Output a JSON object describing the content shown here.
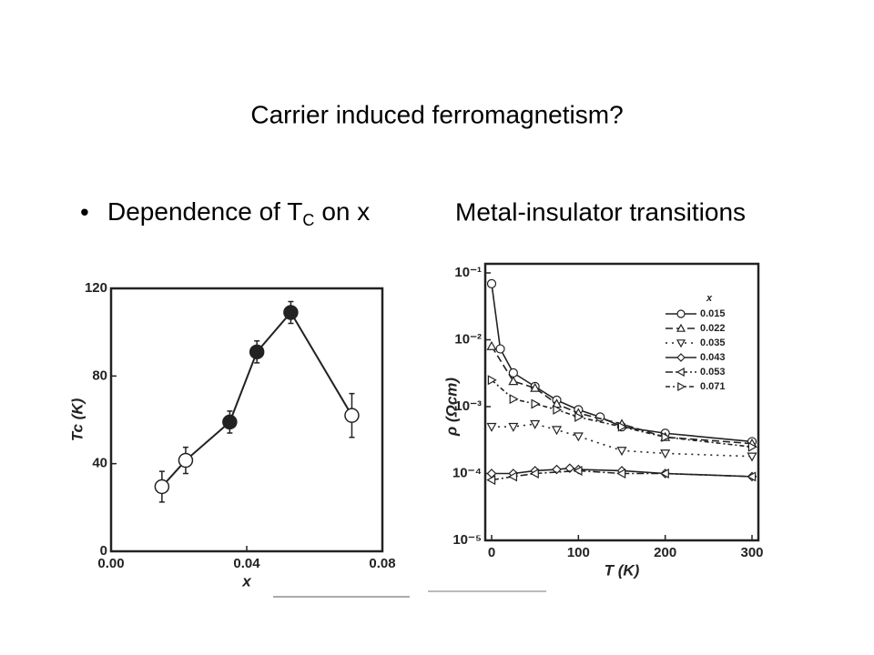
{
  "slide": {
    "title": "Carrier induced ferromagnetism?",
    "bullet": {
      "marker": "•",
      "text": "Dependence of T",
      "subscript": "C",
      "suffix": "on x"
    },
    "heading": "Metal-insulator transitions"
  },
  "chart_data": [
    {
      "type": "scatter",
      "x_label": "x",
      "y_label": "Tc (K)",
      "xlim": [
        0,
        0.08
      ],
      "xticks": [
        {
          "value": 0,
          "label": "0.00"
        },
        {
          "value": 0.04,
          "label": "0.04"
        },
        {
          "value": 0.08,
          "label": "0.08"
        }
      ],
      "ylim": [
        0,
        120
      ],
      "yticks": [
        0,
        40,
        80,
        120
      ],
      "connect": true,
      "color": "#222",
      "x": [
        0.015,
        0.022,
        0.035,
        0.043,
        0.053,
        0.071
      ],
      "values": [
        29.5,
        41.5,
        59,
        91,
        109,
        62
      ],
      "errors": [
        7,
        6,
        5,
        5,
        5,
        10
      ],
      "filled": [
        false,
        false,
        true,
        true,
        true,
        false
      ]
    },
    {
      "type": "line",
      "x_label": "T (K)",
      "y_label": "ρ (Ωcm)",
      "log_y": true,
      "legend_title": "x",
      "legend": "upper right",
      "xlim": [
        0,
        300
      ],
      "xticks": [
        0,
        100,
        200,
        300
      ],
      "ylim": [
        1e-05,
        0.1
      ],
      "yticks": [
        {
          "value": 1e-05,
          "label": "10⁻⁵"
        },
        {
          "value": 0.0001,
          "label": "10⁻⁴"
        },
        {
          "value": 0.001,
          "label": "10⁻³"
        },
        {
          "value": 0.01,
          "label": "10⁻²"
        },
        {
          "value": 0.1,
          "label": "10⁻¹"
        }
      ],
      "series": [
        {
          "name": "0.015",
          "marker": "circle",
          "dash": "none",
          "color": "#222",
          "x": [
            0,
            10,
            25,
            50,
            75,
            100,
            125,
            150,
            200,
            300
          ],
          "values": [
            0.069,
            0.0073,
            0.0032,
            0.002,
            0.00125,
            0.0009,
            0.0007,
            0.0005,
            0.0004,
            0.0003
          ]
        },
        {
          "name": "0.022",
          "marker": "triangle-up",
          "dash": "8 4",
          "color": "#222",
          "x": [
            0,
            25,
            50,
            75,
            100,
            150,
            200,
            300
          ],
          "values": [
            0.008,
            0.0024,
            0.0019,
            0.0011,
            0.0008,
            0.00055,
            0.00035,
            0.00028
          ]
        },
        {
          "name": "0.035",
          "marker": "triangle-down",
          "dash": "2 5",
          "color": "#222",
          "x": [
            0,
            25,
            50,
            75,
            100,
            150,
            200,
            300
          ],
          "values": [
            0.0005,
            0.0005,
            0.00055,
            0.00045,
            0.00036,
            0.00022,
            0.0002,
            0.00018
          ]
        },
        {
          "name": "0.043",
          "marker": "diamond",
          "dash": "none",
          "color": "#222",
          "x": [
            0,
            25,
            50,
            75,
            90,
            100,
            150,
            200,
            300
          ],
          "values": [
            0.0001,
            0.0001,
            0.00011,
            0.000115,
            0.00012,
            0.000115,
            0.00011,
            0.0001,
            9e-05
          ]
        },
        {
          "name": "0.053",
          "marker": "triangle-left",
          "dash": "8 3 2 3",
          "color": "#222",
          "x": [
            0,
            25,
            50,
            100,
            150,
            200,
            300
          ],
          "values": [
            8e-05,
            9e-05,
            0.0001,
            0.00011,
            0.0001,
            0.0001,
            9e-05
          ]
        },
        {
          "name": "0.071",
          "marker": "triangle-right",
          "dash": "5 3 2 3",
          "color": "#222",
          "x": [
            0,
            25,
            50,
            75,
            100,
            150,
            200,
            300
          ],
          "values": [
            0.0025,
            0.0013,
            0.0011,
            0.0009,
            0.0007,
            0.0005,
            0.00035,
            0.00025
          ]
        }
      ]
    }
  ]
}
